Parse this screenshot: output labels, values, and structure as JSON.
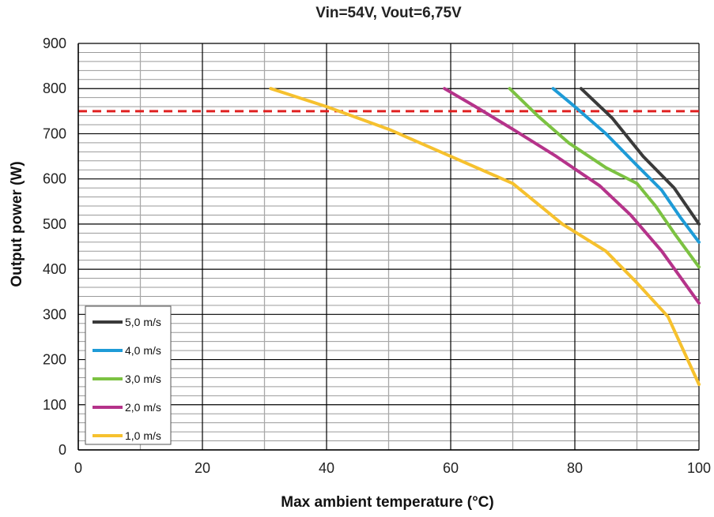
{
  "chart_data": {
    "type": "line",
    "title": "Vin=54V, Vout=6,75V",
    "xlabel": "Max ambient temperature (°C)",
    "ylabel": "Output power (W)",
    "xlim": [
      0,
      100
    ],
    "ylim": [
      0,
      900
    ],
    "x_ticks": [
      "0",
      "20",
      "40",
      "60",
      "80",
      "100"
    ],
    "y_ticks": [
      "0",
      "100",
      "200",
      "300",
      "400",
      "500",
      "600",
      "700",
      "800",
      "900"
    ],
    "grid": true,
    "legend_position": "bottom-left",
    "reference_line": {
      "y": 750,
      "color": "#e02020",
      "style": "dashed"
    },
    "series": [
      {
        "name": "5,0 m/s",
        "color": "#3a3a3a",
        "points": [
          [
            81,
            800
          ],
          [
            86,
            735
          ],
          [
            91,
            650
          ],
          [
            96,
            580
          ],
          [
            100,
            500
          ]
        ]
      },
      {
        "name": "4,0 m/s",
        "color": "#1e9bd7",
        "points": [
          [
            76.5,
            800
          ],
          [
            80,
            760
          ],
          [
            85,
            700
          ],
          [
            90,
            630
          ],
          [
            94,
            575
          ],
          [
            97,
            515
          ],
          [
            100,
            460
          ]
        ]
      },
      {
        "name": "3,0 m/s",
        "color": "#7cc242",
        "points": [
          [
            69.5,
            800
          ],
          [
            74,
            740
          ],
          [
            79,
            680
          ],
          [
            85,
            625
          ],
          [
            90,
            590
          ],
          [
            93,
            540
          ],
          [
            96,
            480
          ],
          [
            100,
            405
          ]
        ]
      },
      {
        "name": "2,0 m/s",
        "color": "#b5338a",
        "points": [
          [
            59,
            800
          ],
          [
            64,
            760
          ],
          [
            70,
            710
          ],
          [
            77,
            650
          ],
          [
            84,
            585
          ],
          [
            89,
            520
          ],
          [
            94,
            440
          ],
          [
            100,
            325
          ]
        ]
      },
      {
        "name": "1,0 m/s",
        "color": "#f6c12e",
        "points": [
          [
            31,
            800
          ],
          [
            40,
            760
          ],
          [
            50,
            710
          ],
          [
            60,
            650
          ],
          [
            70,
            590
          ],
          [
            78,
            500
          ],
          [
            85,
            440
          ],
          [
            90,
            370
          ],
          [
            95,
            295
          ],
          [
            100,
            145
          ]
        ]
      }
    ]
  }
}
